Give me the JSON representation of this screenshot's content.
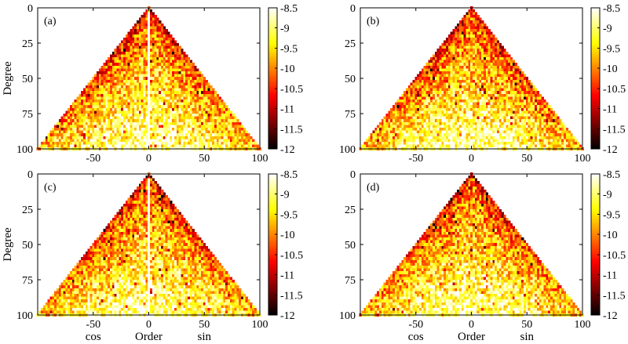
{
  "chart_data": [
    {
      "type": "heatmap",
      "panel_label": "(a)",
      "ylabel": "Degree",
      "xlabel": "",
      "x_range": [
        -100,
        100
      ],
      "y_range": [
        0,
        100
      ],
      "x_ticks": [
        -50,
        0,
        50,
        100
      ],
      "y_ticks": [
        0,
        25,
        50,
        75,
        100
      ],
      "colorbar": {
        "range": [
          -12,
          -8.5
        ],
        "ticks": [
          "-8.5",
          "-9",
          "-9.5",
          "-10",
          "-10.5",
          "-11",
          "-11.5",
          "-12"
        ]
      },
      "description": "Triangular degree-order map, low-degree and near-diagonal values around -9.8 to -10.5, high degree around -8.5 to -9, with a bright white stripe along order 0",
      "center_stripe": true,
      "seed": 11
    },
    {
      "type": "heatmap",
      "panel_label": "(b)",
      "ylabel": "",
      "xlabel": "",
      "x_range": [
        -100,
        100
      ],
      "y_range": [
        0,
        100
      ],
      "x_ticks": [
        -50,
        0,
        50,
        100
      ],
      "y_ticks": [
        0,
        25,
        50,
        75,
        100
      ],
      "colorbar": {
        "range": [
          -12,
          -8.5
        ],
        "ticks": [
          "-8.5",
          "-9",
          "-9.5",
          "-10",
          "-10.5",
          "-11",
          "-11.5",
          "-12"
        ]
      },
      "center_stripe": false,
      "seed": 23
    },
    {
      "type": "heatmap",
      "panel_label": "(c)",
      "ylabel": "Degree",
      "xlabel": "Order",
      "x_side_labels": [
        "cos",
        "sin"
      ],
      "x_range": [
        -100,
        100
      ],
      "y_range": [
        0,
        100
      ],
      "x_ticks": [
        -50,
        0,
        50,
        100
      ],
      "y_ticks": [
        0,
        25,
        50,
        75,
        100
      ],
      "colorbar": {
        "range": [
          -12,
          -8.5
        ],
        "ticks": [
          "-8.5",
          "-9",
          "-9.5",
          "-10",
          "-10.5",
          "-11",
          "-11.5",
          "-12"
        ]
      },
      "center_stripe": true,
      "seed": 37
    },
    {
      "type": "heatmap",
      "panel_label": "(d)",
      "ylabel": "",
      "xlabel": "Order",
      "x_side_labels": [
        "cos",
        "sin"
      ],
      "x_range": [
        -100,
        100
      ],
      "y_range": [
        0,
        100
      ],
      "x_ticks": [
        -50,
        0,
        50,
        100
      ],
      "y_ticks": [
        0,
        25,
        50,
        75,
        100
      ],
      "colorbar": {
        "range": [
          -12,
          -8.5
        ],
        "ticks": [
          "-8.5",
          "-9",
          "-9.5",
          "-10",
          "-10.5",
          "-11",
          "-11.5",
          "-12"
        ]
      },
      "center_stripe": false,
      "seed": 53
    }
  ]
}
